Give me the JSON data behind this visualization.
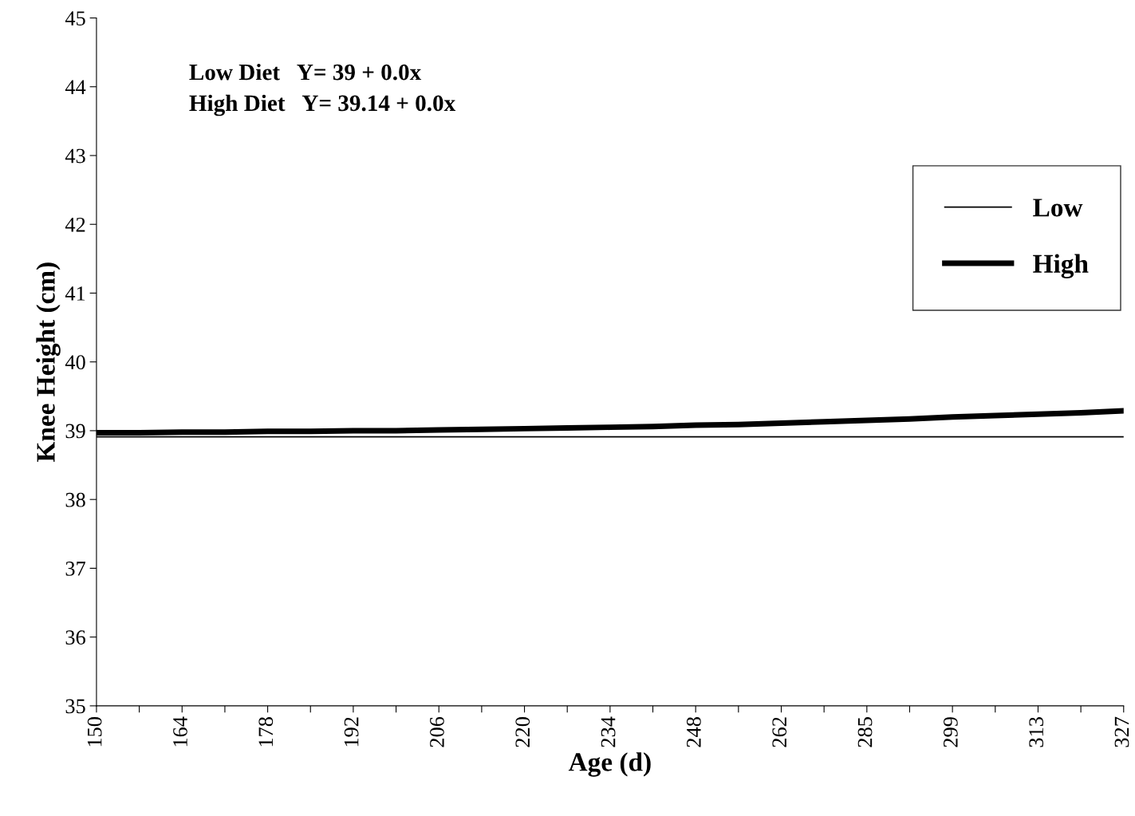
{
  "chart_data": {
    "type": "line",
    "xlabel": "Age (d)",
    "ylabel": "Knee Height (cm)",
    "categories": [
      "150",
      null,
      "164",
      null,
      "178",
      null,
      "192",
      null,
      "206",
      null,
      "220",
      null,
      "234",
      null,
      "248",
      null,
      "262",
      null,
      "285",
      null,
      "299",
      null,
      "313",
      null,
      "327"
    ],
    "series": [
      {
        "name": "Low",
        "color": "#000000",
        "values": [
          38.91,
          38.91,
          38.91,
          38.91,
          38.91,
          38.91,
          38.91,
          38.91,
          38.91,
          38.91,
          38.91,
          38.91,
          38.91,
          38.91,
          38.91,
          38.91,
          38.91,
          38.91,
          38.91,
          38.91,
          38.91,
          38.91,
          38.91,
          38.91,
          38.91
        ]
      },
      {
        "name": "High",
        "color": "#000000",
        "values": [
          38.97,
          38.97,
          38.98,
          38.98,
          38.99,
          38.99,
          39.0,
          39.0,
          39.01,
          39.02,
          39.03,
          39.04,
          39.05,
          39.06,
          39.08,
          39.09,
          39.11,
          39.13,
          39.15,
          39.17,
          39.2,
          39.22,
          39.24,
          39.26,
          39.29
        ]
      }
    ],
    "ylim": [
      35,
      45
    ],
    "yticks": [
      35,
      36,
      37,
      38,
      39,
      40,
      41,
      42,
      43,
      44,
      45
    ],
    "annotations": [
      "Low Diet   Y= 39 + 0.0x",
      "High Diet   Y= 39.14 + 0.0x"
    ],
    "legend": "right",
    "grid": false,
    "marker": "none",
    "line_style": "solid"
  }
}
